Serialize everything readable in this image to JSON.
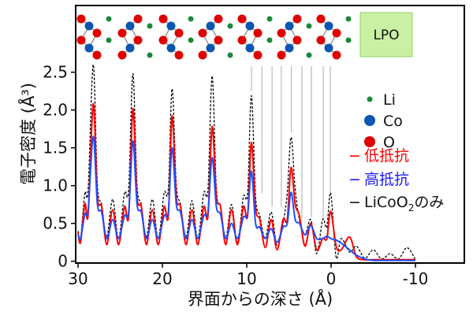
{
  "chart_data": {
    "type": "line",
    "title": "",
    "xlabel": "界面からの深さ (Å)",
    "ylabel": "電子密度 (Å³)",
    "xlim": [
      30,
      -16
    ],
    "ylim": [
      0,
      2.75
    ],
    "x_reversed": true,
    "grid": false,
    "x_ticks": [
      30,
      20,
      10,
      0,
      -10
    ],
    "x_tick_labels": [
      "30",
      "20",
      "10",
      "0",
      "-10"
    ],
    "y_ticks": [
      0,
      0.5,
      1.0,
      1.5,
      2.0,
      2.5
    ],
    "y_tick_labels": [
      "0",
      "0.5",
      "1.0",
      "1.5",
      "2.0",
      "2.5"
    ],
    "x": [
      30,
      29.7,
      29.2,
      28.8,
      28.2,
      27.7,
      27.2,
      26.6,
      25.9,
      25.2,
      24.5,
      24.0,
      23.5,
      23.0,
      22.5,
      21.9,
      21.2,
      20.5,
      19.8,
      19.3,
      18.85,
      18.35,
      17.85,
      17.2,
      16.5,
      15.8,
      15.1,
      14.6,
      14.1,
      13.6,
      13.1,
      12.5,
      11.8,
      11.1,
      10.4,
      9.9,
      9.45,
      8.95,
      8.45,
      7.8,
      7.1,
      6.4,
      5.7,
      5.2,
      4.75,
      4.25,
      3.75,
      3.1,
      2.4,
      1.7,
      1.0,
      0.5,
      0.05,
      -0.6,
      -1.2,
      -2.2,
      -3.0,
      -4.0,
      -5.0,
      -6.0,
      -7.0,
      -8.0,
      -9.0,
      -10.0
    ],
    "series": [
      {
        "name": "低抵抗",
        "color": "#ff0000",
        "style": "solid",
        "values": [
          0.38,
          0.25,
          0.76,
          0.62,
          2.08,
          0.85,
          0.72,
          0.22,
          0.68,
          0.22,
          0.72,
          0.6,
          2.02,
          0.85,
          0.72,
          0.22,
          0.68,
          0.22,
          0.72,
          0.6,
          1.92,
          0.85,
          0.72,
          0.22,
          0.68,
          0.22,
          0.72,
          0.6,
          1.78,
          0.85,
          0.72,
          0.22,
          0.68,
          0.22,
          0.72,
          0.6,
          1.57,
          0.7,
          0.55,
          0.18,
          0.55,
          0.15,
          0.55,
          0.55,
          1.24,
          0.75,
          0.6,
          0.2,
          0.5,
          0.15,
          0.3,
          0.3,
          0.66,
          0.2,
          0.15,
          0.32,
          0.06,
          0.02,
          0.02,
          0.02,
          0.02,
          0.02,
          0.02,
          0.02
        ]
      },
      {
        "name": "高抵抗",
        "color": "#1f4fff",
        "style": "solid",
        "values": [
          0.35,
          0.3,
          0.62,
          0.68,
          1.65,
          0.75,
          0.65,
          0.3,
          0.55,
          0.3,
          0.6,
          0.65,
          1.59,
          0.75,
          0.65,
          0.3,
          0.55,
          0.3,
          0.6,
          0.65,
          1.5,
          0.75,
          0.65,
          0.3,
          0.55,
          0.3,
          0.6,
          0.65,
          1.37,
          0.72,
          0.62,
          0.3,
          0.5,
          0.3,
          0.58,
          0.62,
          1.19,
          0.5,
          0.45,
          0.3,
          0.43,
          0.25,
          0.45,
          0.5,
          0.91,
          0.55,
          0.5,
          0.35,
          0.47,
          0.3,
          0.3,
          0.33,
          0.3,
          0.28,
          0.24,
          0.15,
          0.08,
          0.03,
          0.01,
          0.01,
          0.01,
          0.01,
          0.01,
          0.01
        ]
      },
      {
        "name": "LiCoO₂のみ",
        "color": "#000000",
        "style": "dashed",
        "values": [
          0.4,
          0.3,
          0.9,
          0.95,
          2.6,
          1.0,
          0.75,
          0.32,
          0.82,
          0.3,
          0.9,
          0.95,
          2.48,
          1.0,
          0.75,
          0.32,
          0.82,
          0.3,
          0.9,
          0.95,
          2.28,
          1.0,
          0.75,
          0.32,
          0.8,
          0.3,
          0.9,
          0.95,
          2.45,
          0.95,
          0.72,
          0.3,
          0.75,
          0.25,
          0.85,
          0.9,
          2.19,
          0.85,
          0.6,
          0.3,
          0.65,
          0.2,
          0.5,
          0.9,
          1.64,
          0.95,
          0.55,
          0.35,
          0.55,
          0.1,
          0.55,
          0.45,
          0.9,
          0.05,
          0.3,
          0.12,
          0.2,
          0.04,
          0.15,
          0.03,
          0.1,
          0.03,
          0.18,
          0.02
        ]
      }
    ],
    "reference_lines": [
      {
        "x": 9.44,
        "y_from": 2.58,
        "y_to": 2.25
      },
      {
        "x": 8.2,
        "y_from": 2.58,
        "y_to": 0.9
      },
      {
        "x": 7.0,
        "y_from": 2.58,
        "y_to": 0.72
      },
      {
        "x": 5.9,
        "y_from": 2.58,
        "y_to": 0.72
      },
      {
        "x": 4.7,
        "y_from": 2.58,
        "y_to": 1.7
      },
      {
        "x": 3.46,
        "y_from": 2.58,
        "y_to": 0.58
      },
      {
        "x": 2.34,
        "y_from": 2.58,
        "y_to": 0.58
      },
      {
        "x": 0.93,
        "y_from": 2.58,
        "y_to": 0.56
      },
      {
        "x": 0.1,
        "y_from": 2.58,
        "y_to": 0.91
      }
    ]
  },
  "structure": {
    "label": "LPO",
    "label_color": "#c9f0a3"
  },
  "legend": {
    "atoms": [
      {
        "label": "Li",
        "color": "#1a8a3a"
      },
      {
        "label": "Co",
        "color": "#0a56b0"
      },
      {
        "label": "O",
        "color": "#e00000"
      }
    ],
    "lines": [
      {
        "marker": "−",
        "label": "低抵抗",
        "color": "#ff0000"
      },
      {
        "marker": "−",
        "label": "高抵抗",
        "color": "#1a1aff"
      },
      {
        "marker": "−",
        "label_main": "LiCoO",
        "label_sub": "2",
        "label_tail": "のみ",
        "color": "#111111"
      }
    ]
  }
}
